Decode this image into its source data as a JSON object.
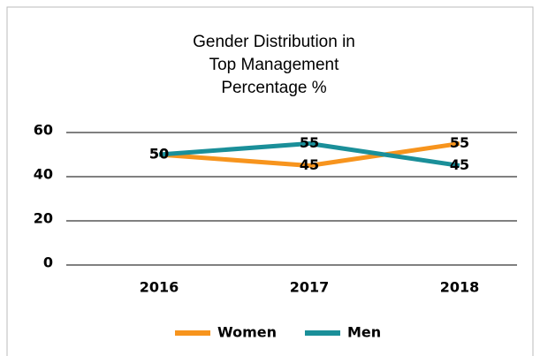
{
  "chart_data": {
    "type": "line",
    "title": [
      "Gender Distribution in",
      "Top Management",
      "Percentage  %"
    ],
    "categories": [
      "2016",
      "2017",
      "2018"
    ],
    "series": [
      {
        "name": "Women",
        "color": "#f7941d",
        "values": [
          50,
          45,
          55
        ]
      },
      {
        "name": "Men",
        "color": "#1a8f99",
        "values": [
          50,
          55,
          45
        ]
      }
    ],
    "ylim": [
      0,
      60
    ],
    "yticks": [
      0,
      20,
      40,
      60
    ],
    "grid": true,
    "legend": "bottom"
  }
}
